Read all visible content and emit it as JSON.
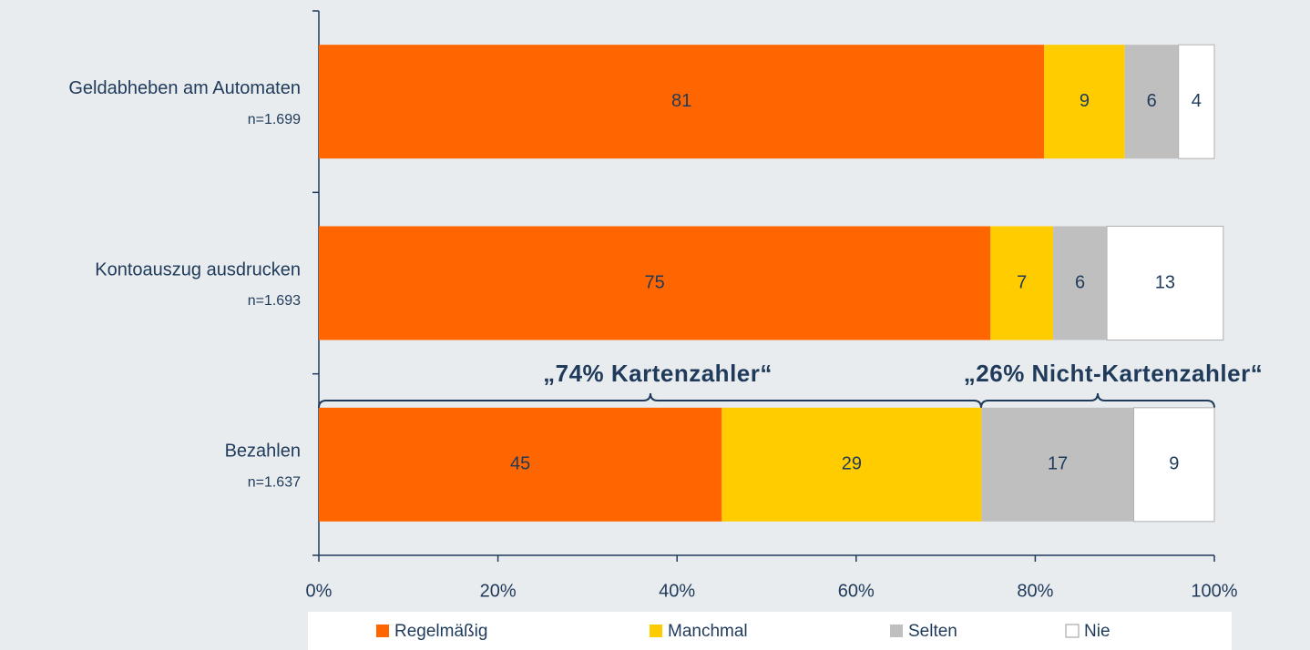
{
  "chart_data": {
    "type": "stacked-bar-horizontal",
    "categories": [
      "Geldabheben am Automaten",
      "Kontoauszug ausdrucken",
      "Bezahlen"
    ],
    "sample_sizes": [
      "n=1.699",
      "n=1.693",
      "n=1.637"
    ],
    "series": [
      {
        "name": "Regelmäßig",
        "color": "#ff6600",
        "values": [
          81,
          75,
          45
        ]
      },
      {
        "name": "Manchmal",
        "color": "#ffcc00",
        "values": [
          9,
          7,
          29
        ]
      },
      {
        "name": "Selten",
        "color": "#bfbfbf",
        "values": [
          6,
          6,
          17
        ]
      },
      {
        "name": "Nie",
        "color": "#ffffff",
        "values": [
          4,
          13,
          9
        ]
      }
    ],
    "xlim": [
      0,
      100
    ],
    "xticks": [
      {
        "value": 0,
        "label": "0%"
      },
      {
        "value": 20,
        "label": "20%"
      },
      {
        "value": 40,
        "label": "40%"
      },
      {
        "value": 60,
        "label": "60%"
      },
      {
        "value": 80,
        "label": "80%"
      },
      {
        "value": 100,
        "label": "100%"
      }
    ],
    "annotations": [
      "„74% Kartenzahler“",
      "„26% Nicht-Kartenzahler“"
    ],
    "legend": "bottom"
  }
}
